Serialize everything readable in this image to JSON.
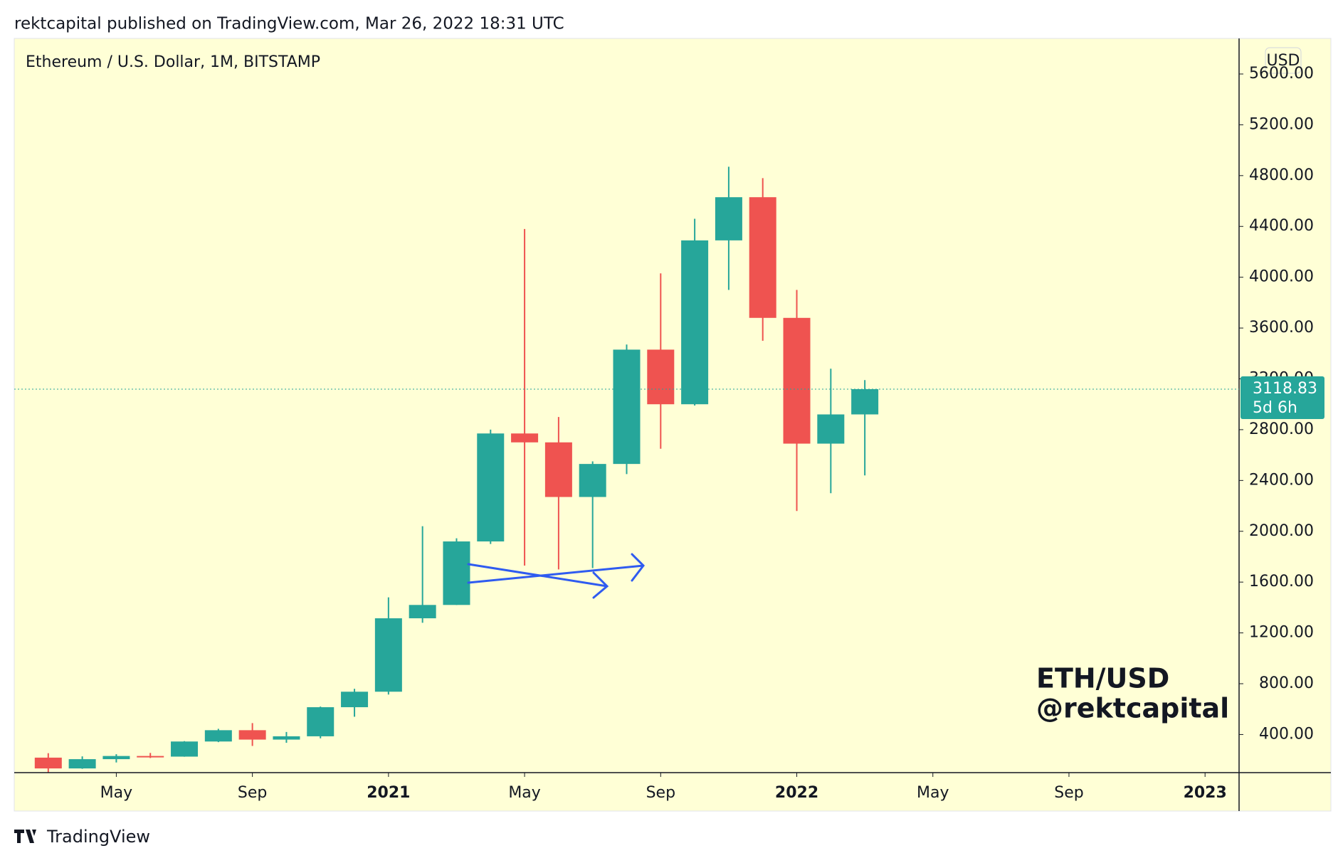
{
  "header": "rektcapital published on TradingView.com, Mar 26, 2022 18:31 UTC",
  "footer": "TradingView",
  "chart_data": {
    "type": "candlestick",
    "title": "Ethereum / U.S. Dollar, 1M, BITSTAMP",
    "currency": "USD",
    "watermark": [
      "ETH/USD",
      "@rektcapital"
    ],
    "countdown": "5d 6h",
    "categories": [
      "2020-03",
      "2020-04",
      "2020-05",
      "2020-06",
      "2020-07",
      "2020-08",
      "2020-09",
      "2020-10",
      "2020-11",
      "2020-12",
      "2021-01",
      "2021-02",
      "2021-03",
      "2021-04",
      "2021-05",
      "2021-06",
      "2021-07",
      "2021-08",
      "2021-09",
      "2021-10",
      "2021-11",
      "2021-12",
      "2022-01",
      "2022-02",
      "2022-03"
    ],
    "open": [
      218,
      133,
      206,
      231,
      226,
      345,
      434,
      360,
      386,
      615,
      737,
      1315,
      1420,
      1920,
      2770,
      2700,
      2270,
      2530,
      3430,
      3000,
      4290,
      4630,
      3680,
      2690,
      2920
    ],
    "high": [
      253,
      228,
      245,
      255,
      348,
      445,
      490,
      420,
      620,
      760,
      1480,
      2040,
      1945,
      2800,
      4380,
      2900,
      2550,
      3470,
      4030,
      4460,
      4870,
      4780,
      3900,
      3280,
      3190
    ],
    "low": [
      90,
      130,
      180,
      215,
      225,
      340,
      310,
      335,
      370,
      540,
      715,
      1280,
      1420,
      1900,
      1730,
      1700,
      1710,
      2450,
      2650,
      2990,
      3900,
      3500,
      2160,
      2300,
      2440
    ],
    "close": [
      133,
      206,
      231,
      226,
      345,
      434,
      360,
      386,
      615,
      737,
      1315,
      1420,
      1920,
      2770,
      2700,
      2270,
      2530,
      3430,
      3000,
      4290,
      4630,
      3680,
      2690,
      2920,
      3118.83
    ],
    "up_color": "#26a69a",
    "down_color": "#ef5350",
    "xlim": [
      "2020-02",
      "2023-02"
    ],
    "xticks": [
      {
        "value": "2020-05",
        "label": "May"
      },
      {
        "value": "2020-09",
        "label": "Sep"
      },
      {
        "value": "2021-01",
        "label": "2021"
      },
      {
        "value": "2021-05",
        "label": "May"
      },
      {
        "value": "2021-09",
        "label": "Sep"
      },
      {
        "value": "2022-01",
        "label": "2022"
      },
      {
        "value": "2022-05",
        "label": "May"
      },
      {
        "value": "2022-09",
        "label": "Sep"
      },
      {
        "value": "2023-01",
        "label": "2023"
      }
    ],
    "ylim": [
      100,
      5880
    ],
    "yticks": [
      {
        "value": 400,
        "label": "400.00"
      },
      {
        "value": 800,
        "label": "800.00"
      },
      {
        "value": 1200,
        "label": "1200.00"
      },
      {
        "value": 1600,
        "label": "1600.00"
      },
      {
        "value": 2000,
        "label": "2000.00"
      },
      {
        "value": 2400,
        "label": "2400.00"
      },
      {
        "value": 2800,
        "label": "2800.00"
      },
      {
        "value": 3200,
        "label": "3200.00"
      },
      {
        "value": 3600,
        "label": "3600.00"
      },
      {
        "value": 4000,
        "label": "4000.00"
      },
      {
        "value": 4400,
        "label": "4400.00"
      },
      {
        "value": 4800,
        "label": "4800.00"
      },
      {
        "value": 5200,
        "label": "5200.00"
      },
      {
        "value": 5600,
        "label": "5600.00"
      }
    ]
  }
}
